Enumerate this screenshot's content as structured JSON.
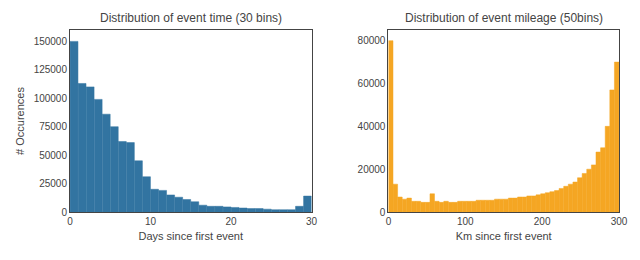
{
  "chart_data": [
    {
      "type": "histogram",
      "title": "Distribution of event time (30 bins)",
      "xlabel": "Days since first event",
      "ylabel": "# Occurences",
      "color": "#3274a1",
      "bins": [
        0,
        1,
        2,
        3,
        4,
        5,
        6,
        7,
        8,
        9,
        10,
        11,
        12,
        13,
        14,
        15,
        16,
        17,
        18,
        19,
        20,
        21,
        22,
        23,
        24,
        25,
        26,
        27,
        28,
        29,
        30
      ],
      "values": [
        150000,
        113000,
        110000,
        99000,
        86000,
        75000,
        62000,
        61000,
        45000,
        31000,
        20000,
        19000,
        15000,
        13000,
        11000,
        9000,
        6000,
        5000,
        5000,
        4500,
        4000,
        3500,
        3000,
        3000,
        2500,
        2000,
        2000,
        2000,
        5000,
        14000
      ],
      "xlim": [
        0,
        30
      ],
      "xticks": [
        0,
        10,
        20,
        30
      ],
      "ylim": [
        0,
        160000
      ],
      "yticks": [
        0,
        25000,
        50000,
        75000,
        100000,
        125000,
        150000
      ],
      "grid": false
    },
    {
      "type": "histogram",
      "title": "Distribution of event mileage (50bins)",
      "xlabel": "Km since first event",
      "color": "#f5a623",
      "bins": [
        0,
        6,
        12,
        18,
        24,
        30,
        36,
        42,
        48,
        54,
        60,
        66,
        72,
        78,
        84,
        90,
        96,
        102,
        108,
        114,
        120,
        126,
        132,
        138,
        144,
        150,
        156,
        162,
        168,
        174,
        180,
        186,
        192,
        198,
        204,
        210,
        216,
        222,
        228,
        234,
        240,
        246,
        252,
        258,
        264,
        270,
        276,
        282,
        288,
        294,
        300
      ],
      "values": [
        80000,
        13000,
        7000,
        6000,
        6500,
        5000,
        5000,
        4500,
        4500,
        8500,
        5000,
        4500,
        5000,
        4500,
        4500,
        5000,
        5000,
        5000,
        5000,
        5500,
        5500,
        5500,
        5500,
        6000,
        6000,
        6000,
        6500,
        6500,
        7000,
        7000,
        7500,
        7500,
        8000,
        8500,
        9000,
        9500,
        10000,
        11000,
        12000,
        13000,
        14000,
        16000,
        18000,
        20000,
        22000,
        28000,
        30000,
        40000,
        57000,
        70000
      ],
      "xlim": [
        0,
        300
      ],
      "xticks": [
        0,
        100,
        200,
        300
      ],
      "ylim": [
        0,
        85000
      ],
      "yticks": [
        0,
        20000,
        40000,
        60000,
        80000
      ],
      "grid": false
    }
  ]
}
